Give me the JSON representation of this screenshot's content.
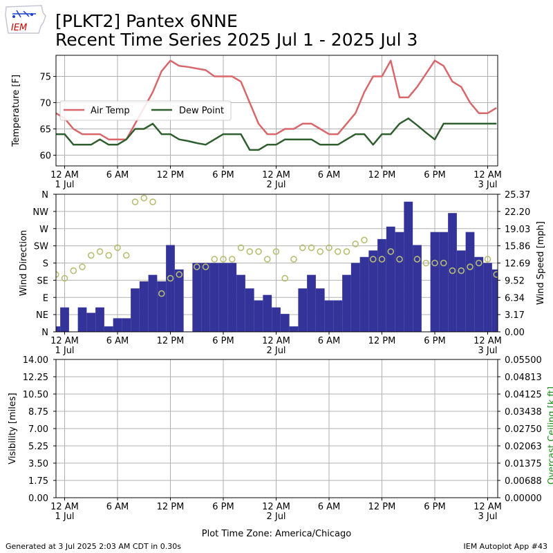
{
  "title": "[PLKT2] Pantex 6NNE",
  "subtitle": "Recent Time Series 2025 Jul 1 - 2025 Jul 3",
  "logo_text": "IEM",
  "footer_left": "Generated at 3 Jul 2025 2:03 AM CDT in 0.30s",
  "footer_right": "IEM Autoplot App #43",
  "xlabel": "Plot Time Zone: America/Chicago",
  "x_ticks": [
    {
      "h": 0,
      "label": "12 AM",
      "sub": "1 Jul"
    },
    {
      "h": 6,
      "label": "6 AM",
      "sub": ""
    },
    {
      "h": 12,
      "label": "12 PM",
      "sub": ""
    },
    {
      "h": 18,
      "label": "6 PM",
      "sub": ""
    },
    {
      "h": 24,
      "label": "12 AM",
      "sub": "2 Jul"
    },
    {
      "h": 30,
      "label": "6 AM",
      "sub": ""
    },
    {
      "h": 36,
      "label": "12 PM",
      "sub": ""
    },
    {
      "h": 42,
      "label": "6 PM",
      "sub": ""
    },
    {
      "h": 48,
      "label": "12 AM",
      "sub": "3 Jul"
    }
  ],
  "colors": {
    "air_temp": "#d9666a",
    "dew_point": "#2f5e2e",
    "wind_speed": "#333399",
    "wind_dir": "#b7bd72",
    "grid": "#b0b0b0"
  },
  "chart_data": [
    {
      "type": "line",
      "ylabel": "Temperature [F]",
      "ylim": [
        58,
        79
      ],
      "yticks": [
        60,
        65,
        70,
        75
      ],
      "legend": "upper-left",
      "x_units": "hours since 1 Jul 12 AM",
      "series": [
        {
          "name": "Air Temp",
          "color": "#d9666a",
          "x": [
            -1,
            0,
            1,
            2,
            3,
            4,
            5,
            6,
            7,
            8,
            9,
            10,
            11,
            12,
            13,
            14,
            15,
            16,
            17,
            18,
            19,
            20,
            21,
            22,
            23,
            24,
            25,
            26,
            27,
            28,
            29,
            30,
            31,
            32,
            33,
            34,
            35,
            36,
            37,
            38,
            39,
            40,
            41,
            42,
            43,
            44,
            45,
            46,
            47,
            48,
            49
          ],
          "y": [
            68,
            67,
            65,
            64,
            64,
            64,
            63,
            63,
            63,
            66,
            69,
            72,
            76,
            78,
            77,
            76.8,
            76.5,
            76.2,
            75,
            75,
            75,
            74,
            70,
            66,
            64,
            64,
            65,
            65,
            66,
            66,
            65,
            64,
            64,
            66,
            68,
            72,
            75,
            75,
            78,
            71,
            71,
            73,
            75.5,
            78,
            77,
            74,
            73,
            70,
            68,
            68,
            69
          ]
        },
        {
          "name": "Dew Point",
          "color": "#2f5e2e",
          "x": [
            -1,
            0,
            1,
            2,
            3,
            4,
            5,
            6,
            7,
            8,
            9,
            10,
            11,
            12,
            13,
            14,
            15,
            16,
            17,
            18,
            19,
            20,
            21,
            22,
            23,
            24,
            25,
            26,
            27,
            28,
            29,
            30,
            31,
            32,
            33,
            34,
            35,
            36,
            37,
            38,
            39,
            40,
            41,
            42,
            43,
            44,
            45,
            46,
            47,
            48,
            49
          ],
          "y": [
            64,
            64,
            62,
            62,
            62,
            63,
            62,
            62,
            63,
            65,
            65,
            66,
            64,
            64,
            63,
            62.7,
            62.3,
            62,
            63,
            64,
            64,
            64,
            61,
            61,
            62,
            62,
            63,
            63,
            63,
            63,
            62,
            62,
            62,
            63,
            64,
            64,
            62,
            64,
            64,
            66,
            67,
            65.7,
            64.3,
            63,
            66,
            66,
            66,
            66,
            66,
            66,
            66
          ]
        }
      ]
    },
    {
      "type": "bar",
      "ylabel": "Wind Direction",
      "y2label": "Wind Speed [mph]",
      "dir_ticks": [
        "N",
        "NE",
        "E",
        "SE",
        "S",
        "SW",
        "W",
        "NW",
        "N"
      ],
      "speed_ticks": [
        "0.00",
        "3.17",
        "6.34",
        "9.52",
        "12.69",
        "15.86",
        "19.03",
        "22.20",
        "25.37"
      ],
      "speed_ylim": [
        0,
        25.37
      ],
      "series": [
        {
          "name": "Wind Speed",
          "color": "#333399",
          "x": [
            -1,
            0,
            1,
            2,
            3,
            4,
            5,
            6,
            7,
            8,
            9,
            10,
            11,
            12,
            13,
            14,
            15,
            16,
            17,
            18,
            19,
            20,
            21,
            22,
            23,
            24,
            25,
            26,
            27,
            28,
            29,
            30,
            31,
            32,
            33,
            34,
            35,
            36,
            37,
            38,
            39,
            40,
            41,
            42,
            43,
            44,
            45,
            46,
            47,
            48,
            49
          ],
          "y": [
            1,
            4.5,
            0,
            4.5,
            3.5,
            4.5,
            1,
            2.5,
            2.5,
            8,
            9.3,
            10.5,
            9.3,
            16,
            11.5,
            0,
            12.7,
            12.7,
            12.7,
            12.7,
            12.7,
            10.5,
            8,
            5.8,
            6.8,
            4.5,
            3.3,
            1,
            8,
            10.5,
            8,
            5.8,
            5.8,
            10.5,
            12.7,
            13.8,
            15,
            17.1,
            19.4,
            18.4,
            24,
            16,
            0,
            18.4,
            18.4,
            21.9,
            15,
            18.4,
            13.8,
            12.7,
            11.5
          ]
        },
        {
          "name": "Wind Direction",
          "color": "#b7bd72",
          "x": [
            -1,
            0,
            1,
            2,
            3,
            4,
            5,
            6,
            7,
            8,
            9,
            10,
            11,
            12,
            13,
            14,
            15,
            16,
            17,
            18,
            19,
            20,
            21,
            22,
            23,
            24,
            25,
            26,
            27,
            28,
            29,
            30,
            31,
            32,
            33,
            34,
            35,
            36,
            37,
            38,
            39,
            40,
            41,
            42,
            43,
            44,
            45,
            46,
            47,
            48,
            49
          ],
          "y": [
            150,
            140,
            160,
            170,
            200,
            210,
            200,
            220,
            200,
            340,
            350,
            340,
            100,
            140,
            150,
            null,
            170,
            170,
            190,
            190,
            190,
            220,
            210,
            210,
            190,
            210,
            140,
            190,
            220,
            220,
            210,
            220,
            210,
            210,
            230,
            240,
            190,
            190,
            210,
            190,
            null,
            190,
            180,
            180,
            180,
            160,
            160,
            170,
            180,
            190,
            150
          ]
        }
      ]
    },
    {
      "type": "line",
      "ylabel": "Visibility [miles]",
      "y2label": "Overcast Ceiling [k ft]",
      "ylim": [
        0,
        14
      ],
      "yticks": [
        "0.00",
        "1.75",
        "3.50",
        "5.25",
        "7.00",
        "8.75",
        "10.50",
        "12.25",
        "14.00"
      ],
      "y2ticks": [
        "0.00000",
        "0.00688",
        "0.01375",
        "0.02063",
        "0.02750",
        "0.03438",
        "0.04125",
        "0.04813",
        "0.05500"
      ],
      "series": []
    }
  ]
}
